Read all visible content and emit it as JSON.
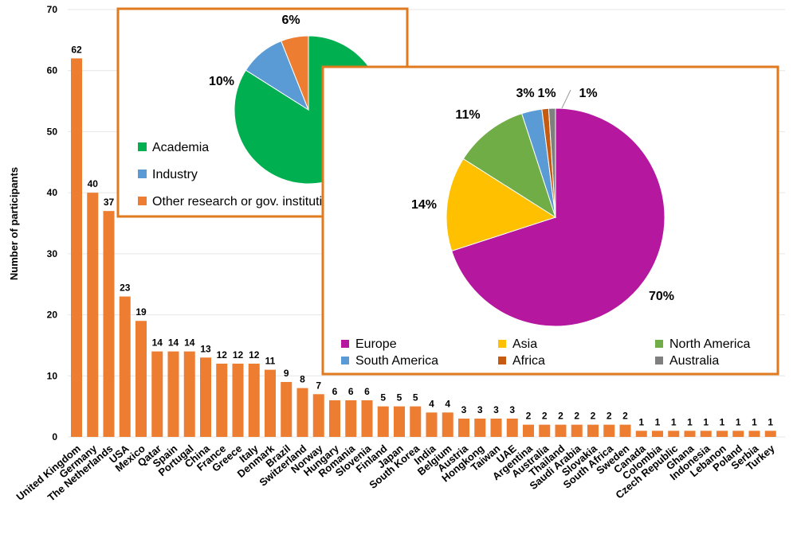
{
  "chart_data": [
    {
      "type": "bar",
      "ylabel": "Number of participants",
      "ylim": [
        0,
        70
      ],
      "yticks": [
        0,
        10,
        20,
        30,
        40,
        50,
        60,
        70
      ],
      "grid": true,
      "color": "#ED7D31",
      "categories": [
        "United Kingdom",
        "Germany",
        "The Netherlands",
        "USA",
        "Mexico",
        "Qatar",
        "Spain",
        "Portugal",
        "China",
        "France",
        "Greece",
        "Italy",
        "Denmark",
        "Brazil",
        "Switzerland",
        "Norway",
        "Hungary",
        "Romania",
        "Slovenia",
        "Finland",
        "Japan",
        "South Korea",
        "India",
        "Belgium",
        "Austria",
        "Hongkong",
        "Taiwan",
        "UAE",
        "Argentina",
        "Australia",
        "Thailand",
        "Saudi Arabia",
        "Slovakia",
        "South Africa",
        "Sweden",
        "Canada",
        "Colombia",
        "Czech Republic",
        "Ghana",
        "Indonesia",
        "Lebanon",
        "Poland",
        "Serbia",
        "Turkey"
      ],
      "values": [
        62,
        40,
        37,
        23,
        19,
        14,
        14,
        14,
        13,
        12,
        12,
        12,
        11,
        9,
        8,
        7,
        6,
        6,
        6,
        5,
        5,
        5,
        4,
        4,
        3,
        3,
        3,
        3,
        2,
        2,
        2,
        2,
        2,
        2,
        2,
        1,
        1,
        1,
        1,
        1,
        1,
        1,
        1,
        1
      ]
    },
    {
      "type": "pie",
      "legend": "bottom-left",
      "slices": [
        {
          "name": "Academia",
          "value": 84,
          "label": "84%",
          "color": "#00B050"
        },
        {
          "name": "Industry",
          "value": 10,
          "label": "10%",
          "color": "#5B9BD5"
        },
        {
          "name": "Other research or gov. institution",
          "value": 6,
          "label": "6%",
          "color": "#ED7D31"
        }
      ]
    },
    {
      "type": "pie",
      "legend": "bottom",
      "slices": [
        {
          "name": "Europe",
          "value": 70,
          "label": "70%",
          "color": "#B5179E"
        },
        {
          "name": "Asia",
          "value": 14,
          "label": "14%",
          "color": "#FFC000"
        },
        {
          "name": "North America",
          "value": 11,
          "label": "11%",
          "color": "#70AD47"
        },
        {
          "name": "South America",
          "value": 3,
          "label": "3%",
          "color": "#5B9BD5"
        },
        {
          "name": "Africa",
          "value": 1,
          "label": "1%",
          "color": "#C55A11"
        },
        {
          "name": "Australia",
          "value": 1,
          "label": "1%",
          "color": "#7F7F7F"
        }
      ]
    }
  ]
}
